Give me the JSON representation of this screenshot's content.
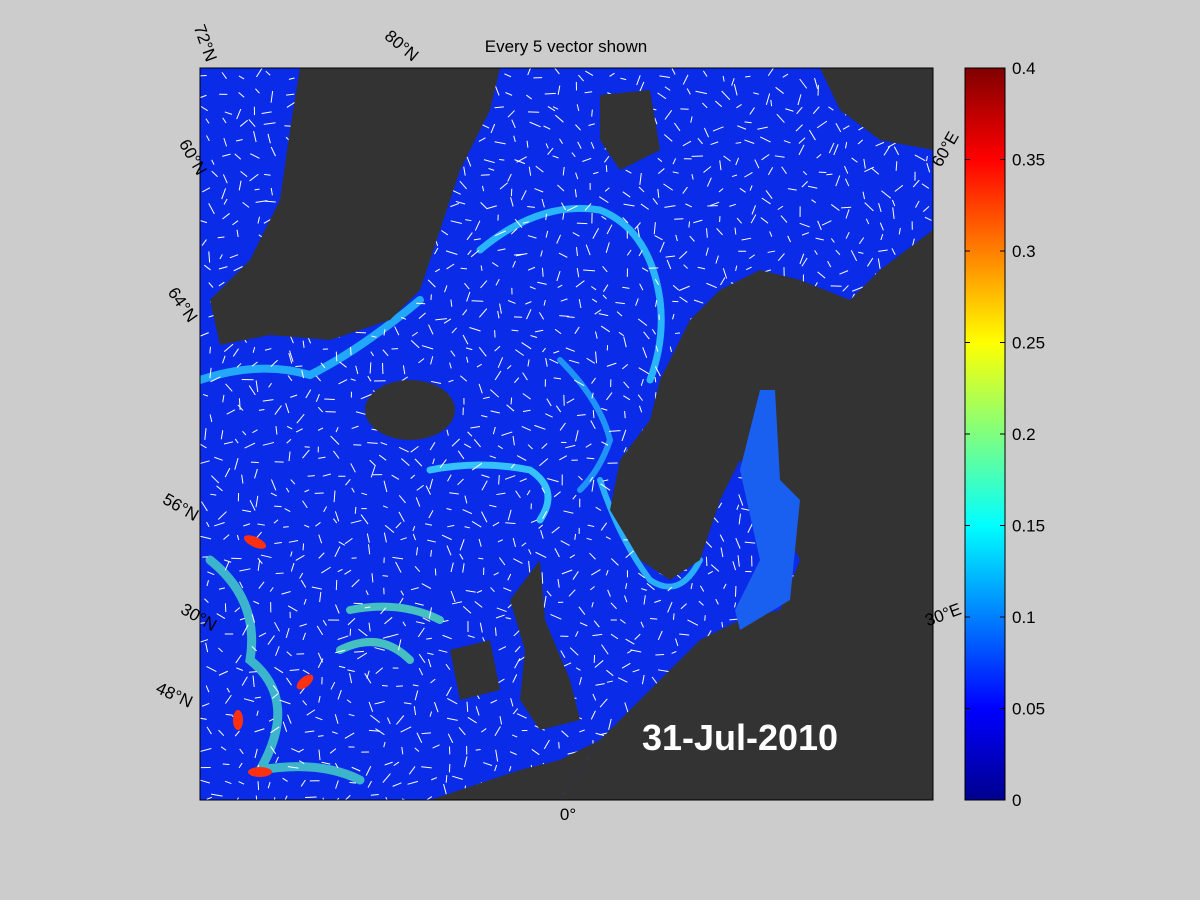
{
  "title": "Every 5 vector shown",
  "date_label": "31-Jul-2010",
  "graticule_labels": [
    "72°N",
    "80°N",
    "60°N",
    "64°N",
    "56°N",
    "30°N",
    "48°N",
    "60°E",
    "30°E",
    "0°"
  ],
  "colorbar": {
    "lim": [
      0,
      0.4
    ],
    "ticks": [
      0,
      0.05,
      0.1,
      0.15,
      0.2,
      0.25,
      0.3,
      0.35,
      0.4
    ],
    "colormap": "jet"
  }
}
